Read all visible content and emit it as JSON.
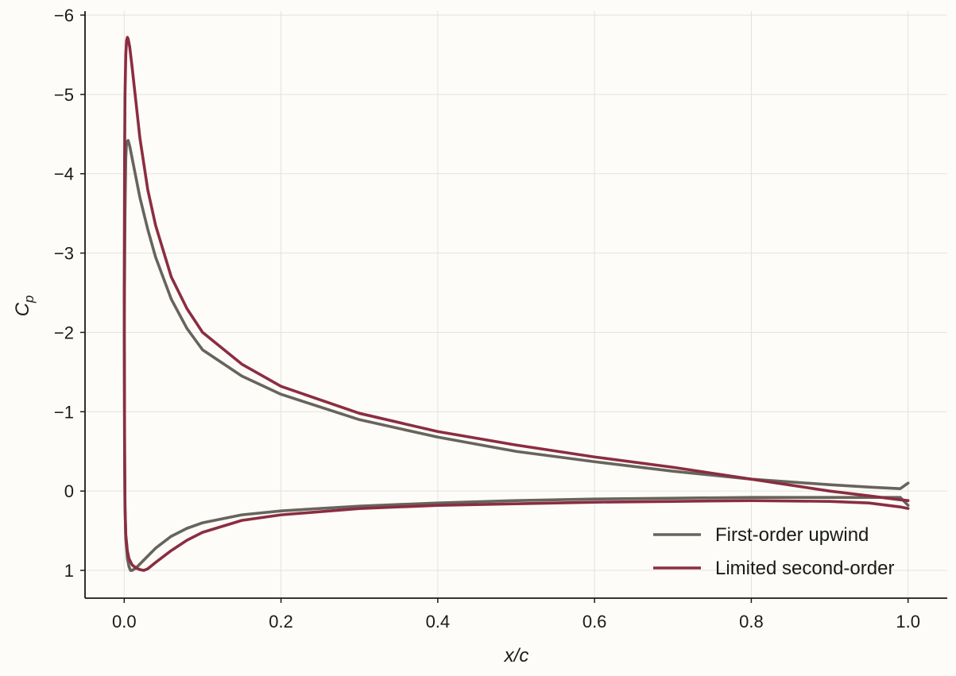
{
  "chart_data": {
    "type": "line",
    "title": "",
    "xlabel": "x/c",
    "ylabel": "C_p",
    "ylabel_main": "C",
    "ylabel_sub": "p",
    "xlim": [
      -0.05,
      1.05
    ],
    "ylim": [
      1.35,
      -6.05
    ],
    "y_inverted": true,
    "x_ticks": [
      0.0,
      0.2,
      0.4,
      0.6,
      0.8,
      1.0
    ],
    "x_tick_labels": [
      "0.0",
      "0.2",
      "0.4",
      "0.6",
      "0.8",
      "1.0"
    ],
    "y_ticks": [
      -6,
      -5,
      -4,
      -3,
      -2,
      -1,
      0,
      1
    ],
    "y_tick_labels": [
      "−6",
      "−5",
      "−4",
      "−3",
      "−2",
      "−1",
      "0",
      "1"
    ],
    "grid": true,
    "legend_position": "bottom-right",
    "series": [
      {
        "name": "First-order upwind",
        "color": "#67645d",
        "x": [
          1.0,
          0.99,
          0.95,
          0.9,
          0.8,
          0.7,
          0.6,
          0.5,
          0.4,
          0.3,
          0.2,
          0.15,
          0.1,
          0.08,
          0.06,
          0.04,
          0.03,
          0.02,
          0.015,
          0.01,
          0.007,
          0.005,
          0.003,
          0.002,
          0.001,
          0.0,
          0.0005,
          0.001,
          0.002,
          0.004,
          0.006,
          0.008,
          0.01,
          0.015,
          0.02,
          0.03,
          0.04,
          0.06,
          0.08,
          0.1,
          0.15,
          0.2,
          0.3,
          0.4,
          0.5,
          0.6,
          0.7,
          0.8,
          0.9,
          0.95,
          0.99,
          1.0
        ],
        "y": [
          -0.1,
          -0.03,
          -0.05,
          -0.08,
          -0.15,
          -0.25,
          -0.37,
          -0.5,
          -0.68,
          -0.9,
          -1.22,
          -1.45,
          -1.78,
          -2.05,
          -2.42,
          -2.95,
          -3.3,
          -3.7,
          -3.95,
          -4.2,
          -4.35,
          -4.42,
          -4.4,
          -4.2,
          -3.5,
          -2.0,
          -0.5,
          0.2,
          0.6,
          0.85,
          0.95,
          1.0,
          1.0,
          0.97,
          0.92,
          0.82,
          0.72,
          0.57,
          0.47,
          0.4,
          0.3,
          0.25,
          0.19,
          0.15,
          0.12,
          0.1,
          0.09,
          0.08,
          0.08,
          0.08,
          0.08,
          0.18
        ]
      },
      {
        "name": "Limited second-order",
        "color": "#8b2d40",
        "x": [
          1.0,
          0.99,
          0.95,
          0.9,
          0.8,
          0.7,
          0.6,
          0.5,
          0.4,
          0.3,
          0.2,
          0.15,
          0.1,
          0.08,
          0.06,
          0.04,
          0.03,
          0.02,
          0.015,
          0.01,
          0.007,
          0.005,
          0.004,
          0.003,
          0.002,
          0.001,
          0.0005,
          0.0,
          0.0005,
          0.001,
          0.002,
          0.004,
          0.006,
          0.01,
          0.015,
          0.02,
          0.025,
          0.03,
          0.04,
          0.06,
          0.08,
          0.1,
          0.15,
          0.2,
          0.3,
          0.4,
          0.5,
          0.6,
          0.7,
          0.8,
          0.9,
          0.95,
          0.99,
          1.0
        ],
        "y": [
          0.12,
          0.11,
          0.06,
          0.0,
          -0.15,
          -0.3,
          -0.43,
          -0.58,
          -0.75,
          -0.98,
          -1.32,
          -1.6,
          -2.0,
          -2.3,
          -2.7,
          -3.35,
          -3.8,
          -4.45,
          -4.9,
          -5.35,
          -5.6,
          -5.7,
          -5.72,
          -5.68,
          -5.5,
          -5.0,
          -4.2,
          -2.5,
          -0.5,
          0.2,
          0.55,
          0.75,
          0.85,
          0.93,
          0.97,
          0.99,
          1.0,
          0.98,
          0.9,
          0.75,
          0.62,
          0.52,
          0.37,
          0.3,
          0.22,
          0.18,
          0.16,
          0.14,
          0.13,
          0.12,
          0.13,
          0.15,
          0.2,
          0.22
        ]
      }
    ]
  }
}
